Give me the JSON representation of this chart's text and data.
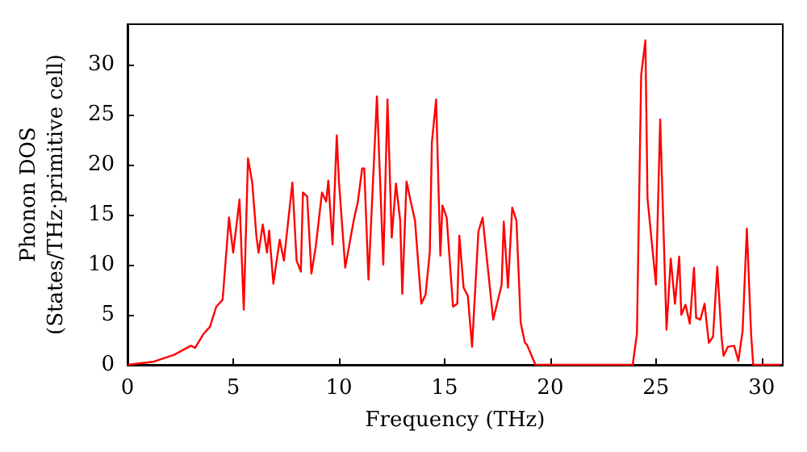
{
  "chart_data": {
    "type": "line",
    "xlabel": "Frequency (THz)",
    "ylabel": "Phonon DOS\n(States/THz·primitive cell)",
    "x": [
      0,
      1.2,
      2.2,
      3.0,
      3.2,
      3.6,
      3.9,
      4.2,
      4.5,
      4.8,
      5.0,
      5.3,
      5.5,
      5.7,
      5.9,
      6.1,
      6.2,
      6.4,
      6.6,
      6.7,
      6.9,
      7.2,
      7.4,
      7.8,
      8.0,
      8.2,
      8.3,
      8.5,
      8.7,
      8.9,
      9.2,
      9.4,
      9.5,
      9.7,
      9.9,
      10.0,
      10.3,
      10.7,
      10.9,
      11.1,
      11.2,
      11.4,
      11.8,
      12.1,
      12.3,
      12.5,
      12.7,
      12.9,
      13.0,
      13.2,
      13.4,
      13.6,
      13.9,
      14.1,
      14.3,
      14.4,
      14.6,
      14.8,
      14.9,
      15.1,
      15.4,
      15.6,
      15.7,
      15.9,
      16.1,
      16.3,
      16.6,
      16.8,
      17.3,
      17.7,
      17.8,
      18.0,
      18.2,
      18.4,
      18.6,
      18.8,
      18.9,
      19.3,
      20.4,
      23.9,
      24.1,
      24.3,
      24.5,
      24.6,
      25.0,
      25.2,
      25.5,
      25.7,
      25.9,
      26.1,
      26.2,
      26.4,
      26.6,
      26.8,
      26.9,
      27.1,
      27.3,
      27.5,
      27.7,
      27.9,
      28.1,
      28.2,
      28.4,
      28.7,
      28.9,
      29.1,
      29.3,
      29.5,
      29.6,
      30.9
    ],
    "series": [
      {
        "color": "#ff0000",
        "values": [
          0,
          0.3,
          1.0,
          1.9,
          1.7,
          3.1,
          3.8,
          5.8,
          6.5,
          14.7,
          11.2,
          16.5,
          5.5,
          20.6,
          18.2,
          12.8,
          11.2,
          14,
          11.2,
          13.4,
          8.1,
          12.5,
          10.4,
          18.2,
          10.4,
          9.3,
          17.2,
          16.8,
          9.1,
          11.7,
          17.2,
          16.3,
          18.4,
          12,
          22.9,
          18.4,
          9.7,
          14.4,
          16.3,
          19.6,
          19.6,
          8.5,
          26.8,
          10,
          26.5,
          12.7,
          18.1,
          14.4,
          7.1,
          18.3,
          16.3,
          14.4,
          6.1,
          7,
          11.2,
          22.2,
          26.5,
          10.9,
          15.9,
          14.7,
          5.8,
          6.1,
          12.9,
          7.7,
          6.9,
          1.8,
          13.3,
          14.7,
          4.5,
          8,
          14.3,
          7.7,
          15.7,
          14.4,
          4.2,
          2.2,
          2,
          0,
          0,
          0,
          3.1,
          28.9,
          32.4,
          16.6,
          8,
          24.5,
          3.5,
          10.6,
          6.1,
          10.8,
          5,
          6,
          4.1,
          9.7,
          4.7,
          4.5,
          6.1,
          2.2,
          2.8,
          9.8,
          2.8,
          0.9,
          1.8,
          1.9,
          0.4,
          3.4,
          13.6,
          3.1,
          0,
          0
        ]
      }
    ],
    "xlim": [
      0,
      31
    ],
    "xticks": [
      0,
      5,
      10,
      15,
      20,
      25,
      30
    ],
    "ylim": [
      0,
      34
    ],
    "yticks": [
      0,
      5,
      10,
      15,
      20,
      25,
      30
    ],
    "marker": "none",
    "line_style": "solid"
  }
}
